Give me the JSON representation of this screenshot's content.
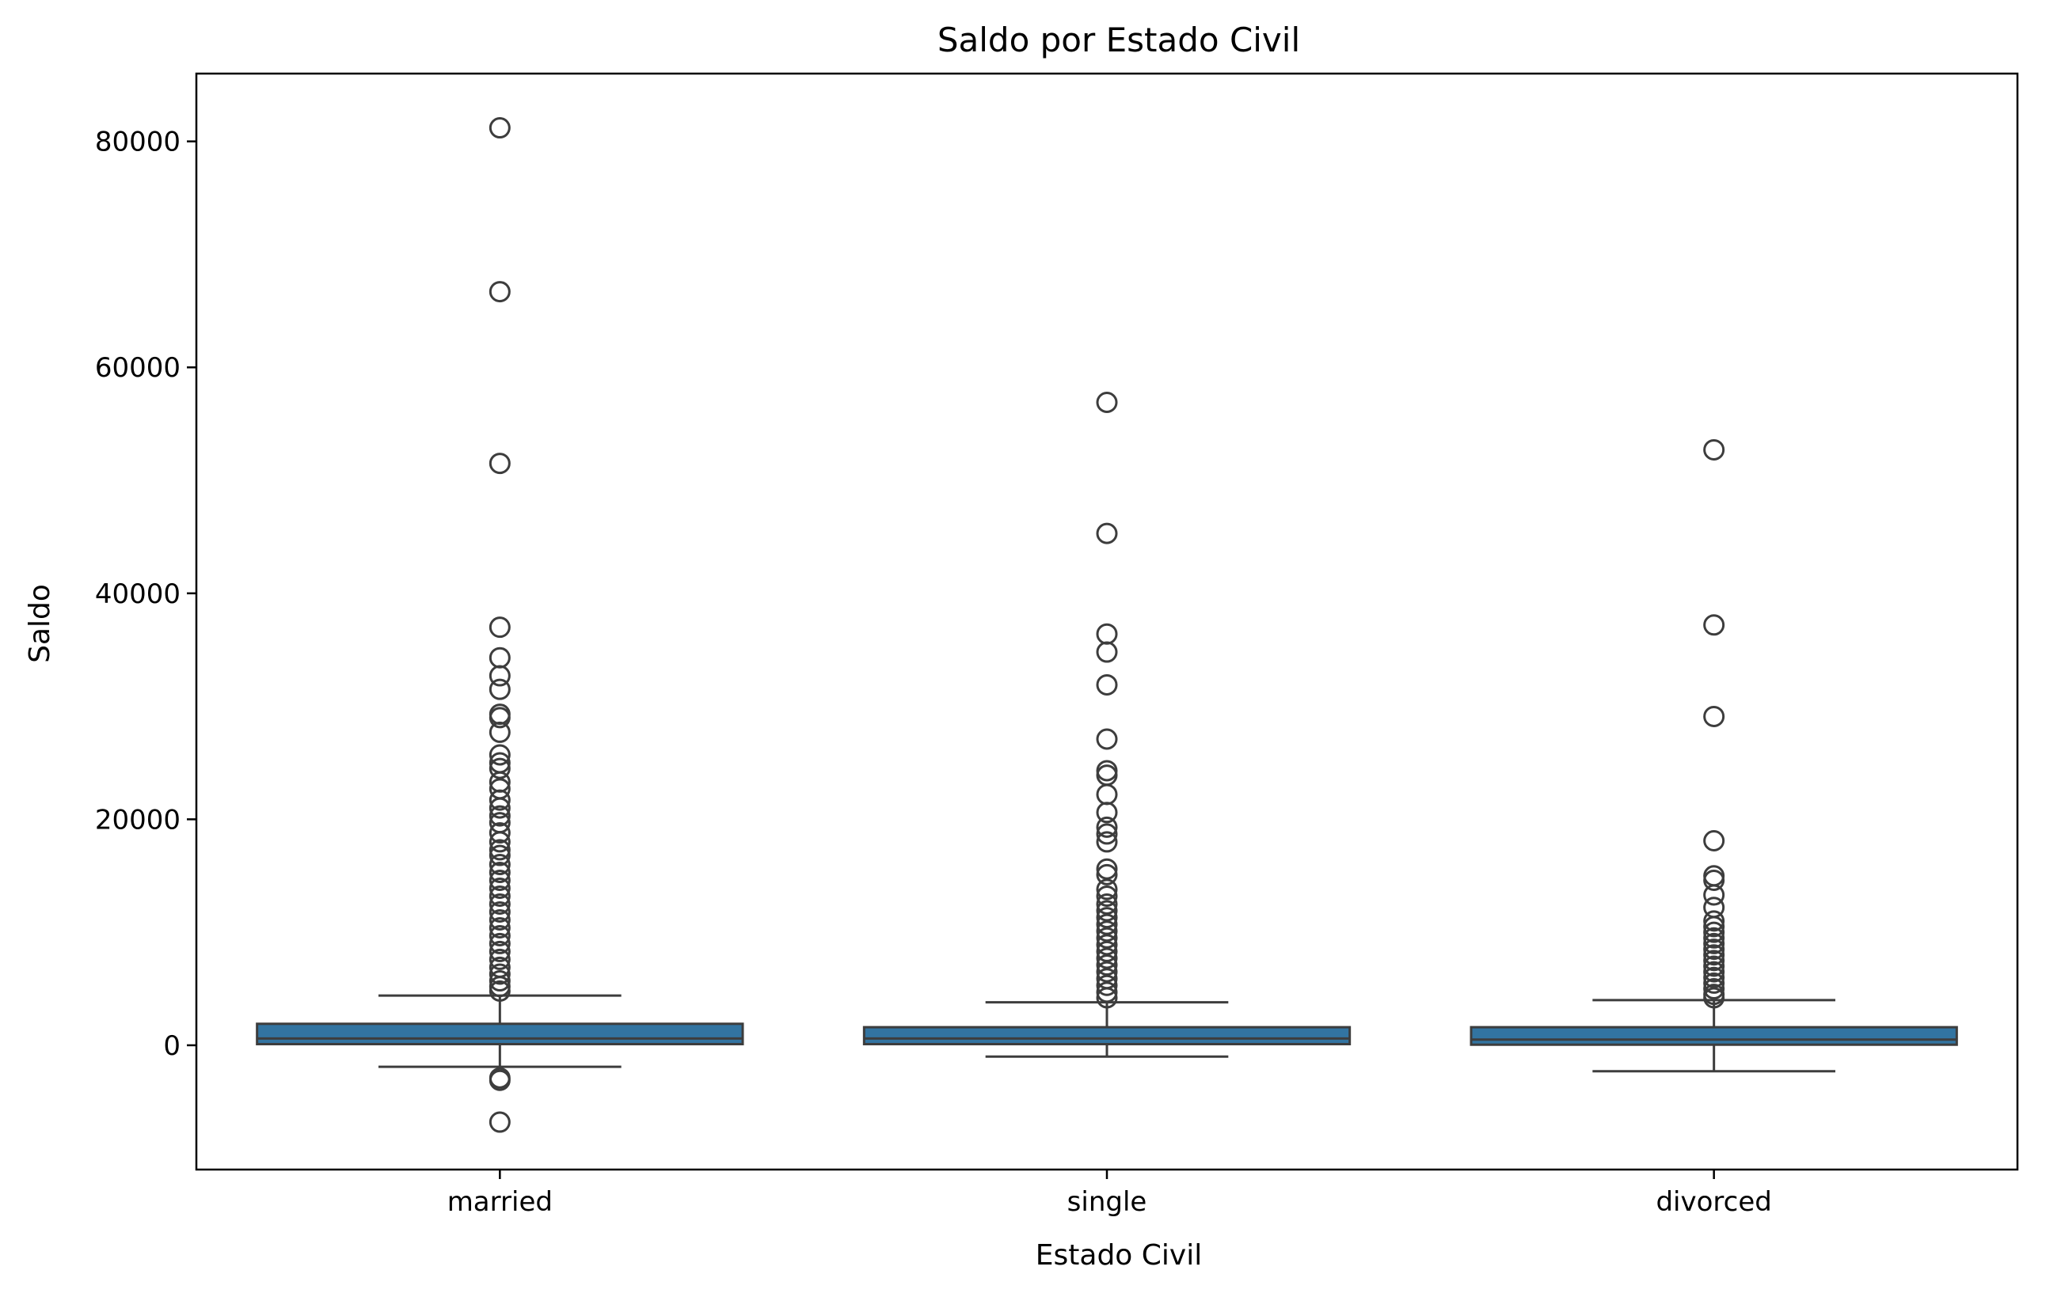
{
  "chart_data": {
    "type": "box",
    "title": "Saldo por Estado Civil",
    "xlabel": "Estado Civil",
    "ylabel": "Saldo",
    "ylim": [
      -11000,
      86000
    ],
    "yticks": [
      0,
      20000,
      40000,
      60000,
      80000
    ],
    "ytick_labels": [
      "0",
      "20000",
      "40000",
      "60000",
      "80000"
    ],
    "categories": [
      "married",
      "single",
      "divorced"
    ],
    "box_color": "#3274a1",
    "line_color": "#3d3d3d",
    "grid": false,
    "boxes": [
      {
        "category": "married",
        "whisker_low": -1900,
        "q1": 100,
        "median": 600,
        "q3": 1900,
        "whisker_high": 4400,
        "outliers": [
          81200,
          66700,
          51500,
          37000,
          34300,
          32700,
          31500,
          29300,
          29000,
          27700,
          25700,
          25000,
          24500,
          23300,
          22700,
          21700,
          21000,
          20300,
          19700,
          18800,
          18000,
          17300,
          16800,
          16000,
          15300,
          14600,
          13900,
          13200,
          12500,
          11800,
          11100,
          10400,
          9700,
          9000,
          8300,
          7600,
          6900,
          6300,
          5700,
          5200,
          4800,
          -2900,
          -3100,
          -6800
        ]
      },
      {
        "category": "single",
        "whisker_low": -1000,
        "q1": 100,
        "median": 600,
        "q3": 1600,
        "whisker_high": 3800,
        "outliers": [
          56900,
          45300,
          36400,
          34800,
          31900,
          27100,
          24300,
          23900,
          22200,
          20600,
          19300,
          18700,
          18000,
          15600,
          15100,
          13800,
          13200,
          12500,
          11900,
          11300,
          10700,
          10100,
          9500,
          8900,
          8300,
          7700,
          7100,
          6500,
          5900,
          5300,
          4700,
          4200
        ]
      },
      {
        "category": "divorced",
        "whisker_low": -2300,
        "q1": 50,
        "median": 500,
        "q3": 1600,
        "whisker_high": 4000,
        "outliers": [
          52700,
          37200,
          29100,
          18100,
          15000,
          14600,
          13300,
          12200,
          11000,
          10500,
          10000,
          9500,
          9000,
          8500,
          8000,
          7500,
          7000,
          6500,
          6000,
          5500,
          5000,
          4500,
          4200
        ]
      }
    ]
  }
}
